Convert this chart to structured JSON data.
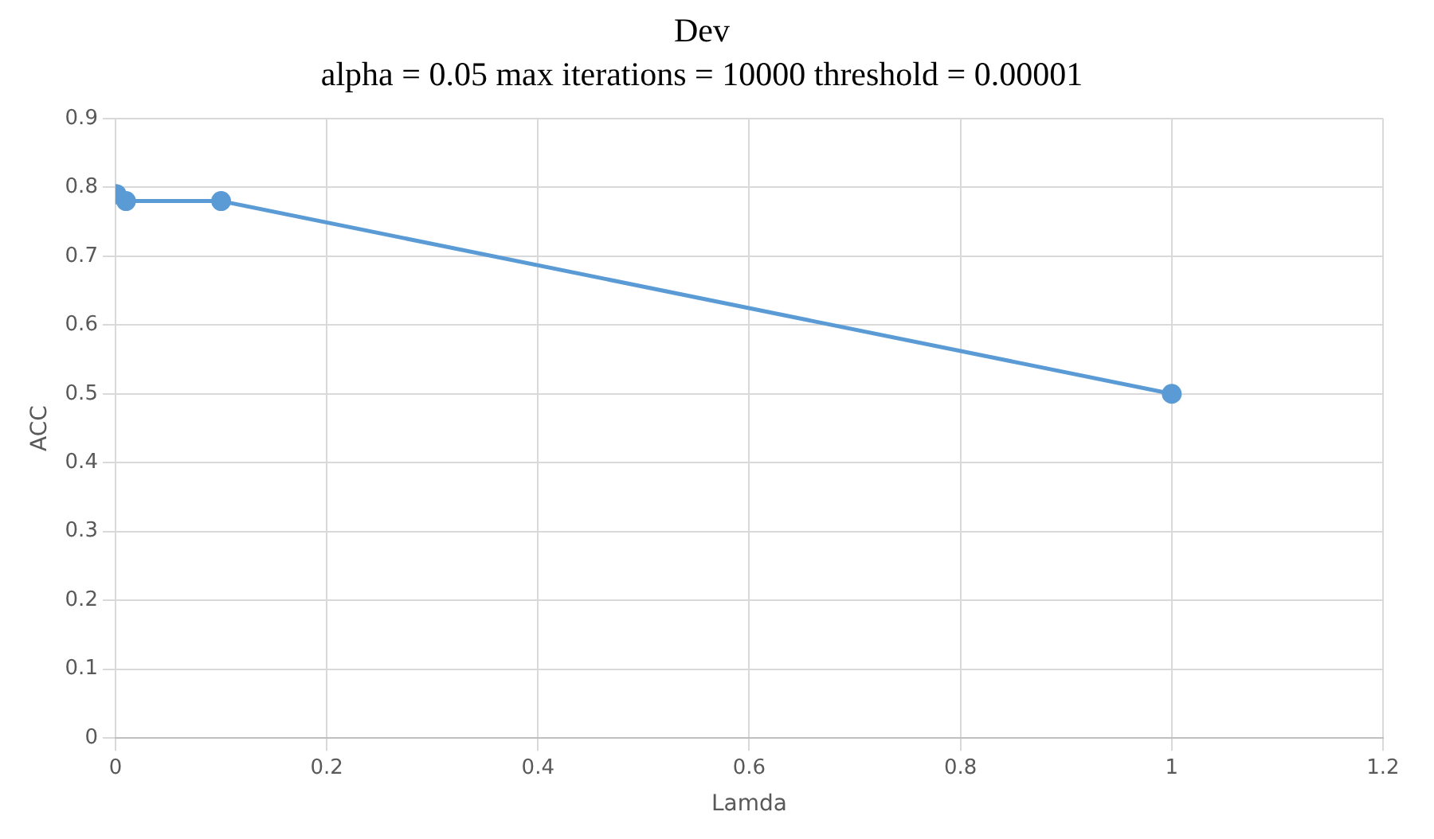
{
  "chart_data": {
    "type": "line",
    "title": "Dev",
    "subtitle": "alpha = 0.05 max iterations = 10000 threshold = 0.00001",
    "xlabel": "Lamda",
    "ylabel": "ACC",
    "x": [
      0.0001,
      0.001,
      0.01,
      0.1,
      1
    ],
    "series": [
      {
        "color": "#5b9bd5",
        "values": [
          0.79,
          0.79,
          0.78,
          0.78,
          0.5
        ]
      }
    ],
    "xlim": [
      0,
      1.2
    ],
    "xticks": [
      0,
      0.2,
      0.4,
      0.6,
      0.8,
      1,
      1.2
    ],
    "ylim": [
      0,
      0.9
    ],
    "yticks": [
      0,
      0.1,
      0.2,
      0.3,
      0.4,
      0.5,
      0.6,
      0.7,
      0.8,
      0.9
    ],
    "grid": true,
    "legend": false,
    "marker": "circle",
    "line_style": "solid"
  }
}
